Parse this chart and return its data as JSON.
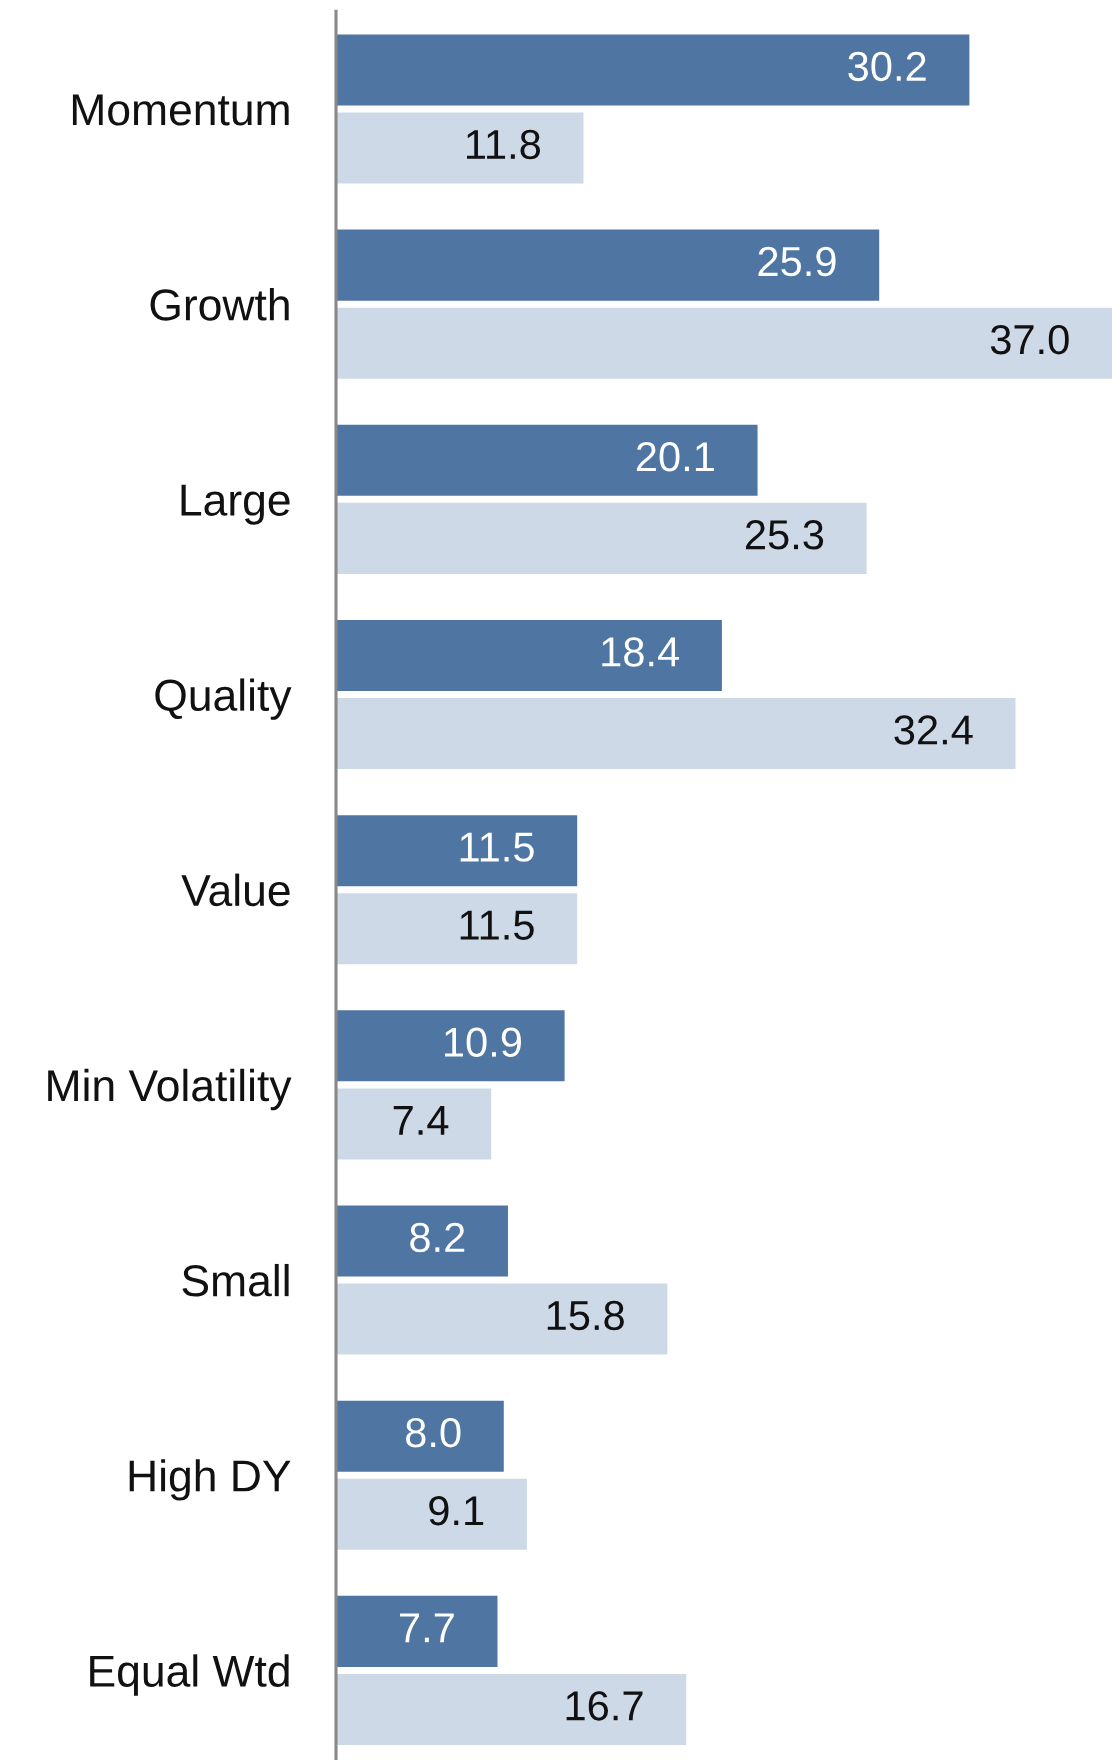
{
  "chart_data": {
    "type": "bar",
    "orientation": "horizontal",
    "tick_labels": "y",
    "categories": [
      "Momentum",
      "Growth",
      "Large",
      "Quality",
      "Value",
      "Min Volatility",
      "Small",
      "High DY",
      "Equal Wtd"
    ],
    "series": [
      {
        "color": "#4f76a3",
        "values": [
          30.2,
          25.9,
          20.1,
          18.4,
          11.5,
          10.9,
          8.2,
          8.0,
          7.7
        ],
        "value_labels": [
          "30.2",
          "25.9",
          "20.1",
          "18.4",
          "11.5",
          "10.9",
          "8.2",
          "8.0",
          "7.7"
        ]
      },
      {
        "color": "#cdd9e7",
        "values": [
          11.8,
          37.0,
          25.3,
          32.4,
          11.5,
          7.4,
          15.8,
          9.1,
          16.7
        ],
        "value_labels": [
          "11.8",
          "37.0",
          "25.3",
          "32.4",
          "11.5",
          "7.4",
          "15.8",
          "9.1",
          "16.7"
        ]
      }
    ]
  }
}
